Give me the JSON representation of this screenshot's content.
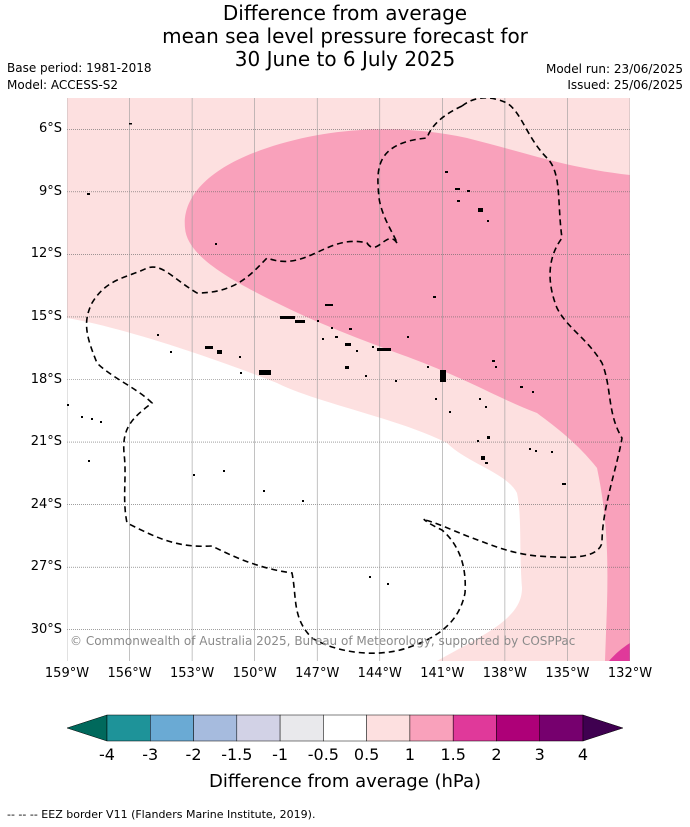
{
  "title": {
    "line1": "Difference from average",
    "line2": "mean sea level pressure forecast for",
    "line3": "30 June to 6 July 2025"
  },
  "meta": {
    "base_period": "Base period: 1981-2018",
    "model": "Model: ACCESS-S2",
    "model_run": "Model run: 23/06/2025",
    "issued": "Issued: 25/06/2025"
  },
  "map": {
    "lat_labels": [
      "6°S",
      "9°S",
      "12°S",
      "15°S",
      "18°S",
      "21°S",
      "24°S",
      "27°S",
      "30°S"
    ],
    "lat_values": [
      -6,
      -9,
      -12,
      -15,
      -18,
      -21,
      -24,
      -27,
      -30
    ],
    "lon_labels": [
      "159°W",
      "156°W",
      "153°W",
      "150°W",
      "147°W",
      "144°W",
      "141°W",
      "138°W",
      "135°W",
      "132°W"
    ],
    "lon_values": [
      -159,
      -156,
      -153,
      -150,
      -147,
      -144,
      -141,
      -138,
      -135,
      -132
    ],
    "lat_range": [
      -31.5,
      -4.5
    ],
    "lon_range": [
      -159,
      -132
    ],
    "copyright": "© Commonwealth of Australia 2025, Bureau of Meteorology, supported by COSPPac",
    "colors": {
      "band_0_5_to_1": "#fde0e0",
      "band_1_to_1_5": "#f9a1bb",
      "band_1_5_to_2": "#e0399a",
      "eez_border": "#000000",
      "grid": "#666666"
    }
  },
  "colorbar": {
    "tick_labels": [
      "-4",
      "-3",
      "-2",
      "-1.5",
      "-1",
      "-0.5",
      "0.5",
      "1",
      "1.5",
      "2",
      "3",
      "4"
    ],
    "colors": [
      "#00695c",
      "#1e9399",
      "#6aaad4",
      "#a6bbde",
      "#d2d2e6",
      "#e9e9ec",
      "#ffffff",
      "#fde0e0",
      "#f9a1bb",
      "#e0399a",
      "#ae0078",
      "#76006e",
      "#3f0050"
    ],
    "label": "Difference from average (hPa)"
  },
  "footnote": "--  --  -- EEZ border V11 (Flanders Marine Institute, 2019)."
}
